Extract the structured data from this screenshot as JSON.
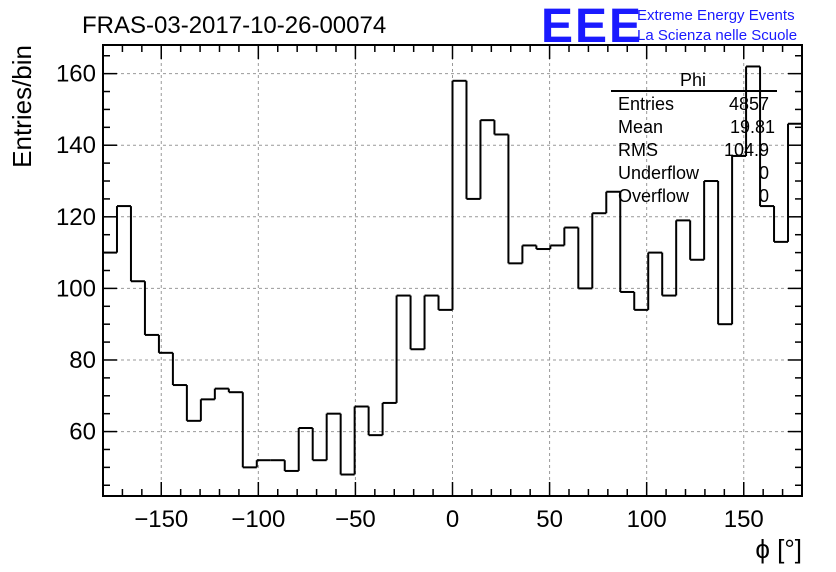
{
  "header": {
    "run_title": "FRAS-03-2017-10-26-00074",
    "logo_text": "EEE",
    "logo_line1": "Extreme Energy Events",
    "logo_line2": "La Scienza nelle Scuole"
  },
  "stats_box": {
    "title": "Phi",
    "rows": [
      {
        "label": "Entries",
        "value": "4857"
      },
      {
        "label": "Mean",
        "value": "19.81"
      },
      {
        "label": "RMS",
        "value": "104.9"
      },
      {
        "label": "Underflow",
        "value": "0"
      },
      {
        "label": "Overflow",
        "value": "0"
      }
    ]
  },
  "colors": {
    "histogram": "#000000",
    "grid": "#999999",
    "logo": "#1a1aff"
  },
  "chart_data": {
    "type": "bar",
    "style": "step-histogram",
    "xlabel": "ϕ [°]",
    "ylabel": "Entries/bin",
    "xlim": [
      -180,
      180
    ],
    "ylim": [
      42,
      168
    ],
    "xticks": [
      -150,
      -100,
      -50,
      0,
      50,
      100,
      150
    ],
    "yticks": [
      60,
      80,
      100,
      120,
      140,
      160
    ],
    "grid": true,
    "bin_width": 7.2,
    "values": [
      110,
      123,
      102,
      87,
      82,
      73,
      63,
      69,
      72,
      71,
      50,
      52,
      52,
      49,
      61,
      52,
      65,
      48,
      67,
      59,
      68,
      98,
      83,
      98,
      94,
      158,
      125,
      147,
      143,
      107,
      112,
      111,
      112,
      117,
      100,
      121,
      127,
      99,
      94,
      110,
      98,
      119,
      108,
      130,
      90,
      137,
      162,
      123,
      113,
      146
    ]
  }
}
